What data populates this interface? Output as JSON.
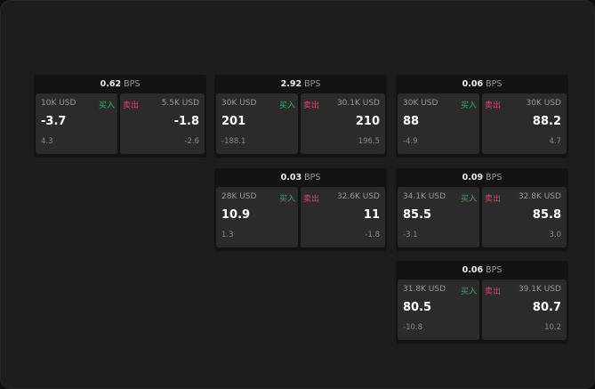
{
  "unit_label": "BPS",
  "buy_label": "买入",
  "sell_label": "卖出",
  "colors": {
    "buy": "#2fb45c",
    "sell": "#e5406a"
  },
  "cards": [
    {
      "spread": "0.62",
      "bid_size": "10K USD",
      "bid": "-3.7",
      "bid_change": "4.3",
      "ask_size": "5.5K USD",
      "ask": "-1.8",
      "ask_change": "-2.6"
    },
    {
      "spread": "2.92",
      "bid_size": "30K USD",
      "bid": "201",
      "bid_change": "-188.1",
      "ask_size": "30.1K USD",
      "ask": "210",
      "ask_change": "196.5"
    },
    {
      "spread": "0.06",
      "bid_size": "30K USD",
      "bid": "88",
      "bid_change": "-4.9",
      "ask_size": "30K USD",
      "ask": "88.2",
      "ask_change": "4.7"
    },
    {
      "spread": "0.03",
      "bid_size": "28K USD",
      "bid": "10.9",
      "bid_change": "1.3",
      "ask_size": "32.6K USD",
      "ask": "11",
      "ask_change": "-1.8"
    },
    {
      "spread": "0.09",
      "bid_size": "34.1K USD",
      "bid": "85.5",
      "bid_change": "-3.1",
      "ask_size": "32.8K USD",
      "ask": "85.8",
      "ask_change": "3.0"
    },
    {
      "spread": "0.06",
      "bid_size": "31.8K USD",
      "bid": "80.5",
      "bid_change": "-10.8",
      "ask_size": "39.1K USD",
      "ask": "80.7",
      "ask_change": "10.2"
    }
  ]
}
